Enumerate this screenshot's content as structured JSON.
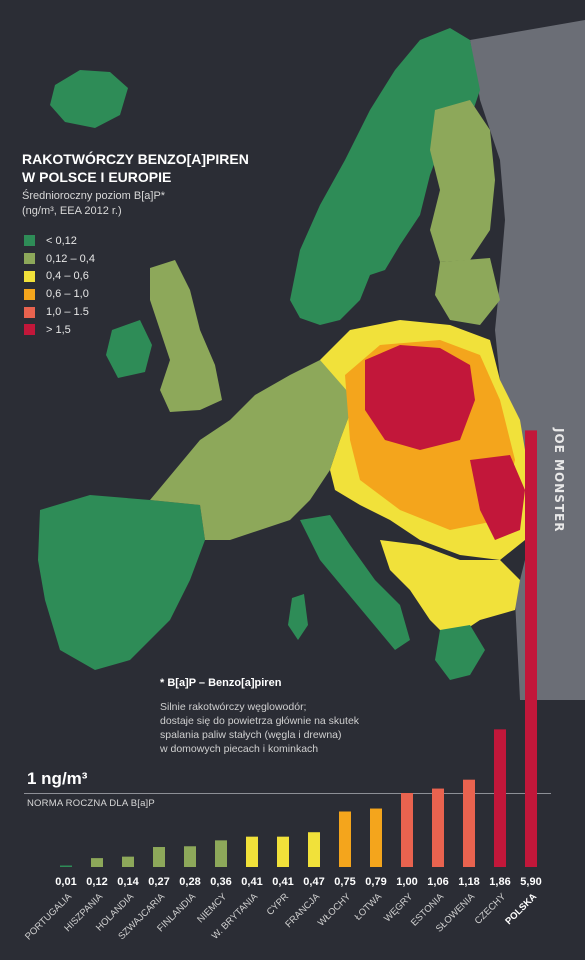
{
  "header": {
    "title_line1": "RAKOTWÓRCZY BENZO[A]PIREN",
    "title_line2": "W POLSCE I EUROPIE",
    "subtitle_line1": "Średnioroczny poziom B[a]P*",
    "subtitle_line2": "(ng/m³, EEA 2012 r.)"
  },
  "legend": [
    {
      "label": "< 0,12",
      "color": "#2e8c57"
    },
    {
      "label": "0,12 – 0,4",
      "color": "#8da85a"
    },
    {
      "label": "0,4 – 0,6",
      "color": "#f1e13a"
    },
    {
      "label": "0,6 – 1,0",
      "color": "#f4a51c"
    },
    {
      "label": "1,0 – 1.5",
      "color": "#e9634f"
    },
    {
      "label": "> 1,5",
      "color": "#c2173a"
    }
  ],
  "footnote": {
    "title": "* B[a]P – Benzo[a]piren",
    "line1": "Silnie rakotwórczy węglowodór;",
    "line2": "dostaje się do powietrza głównie na skutek",
    "line3": "spalania paliw stałych (węgla i drewna)",
    "line4": "w domowych piecach i kominkach"
  },
  "norm": {
    "value": "1 ng/m³",
    "label": "NORMA ROCZNA DLA B[a]P"
  },
  "watermark": "JOE MONSTER",
  "chart_data": {
    "type": "bar",
    "categories": [
      "PORTUGALIA",
      "HISZPANIA",
      "HOLANDIA",
      "SZWAJCARIA",
      "FINLANDIA",
      "NIEMCY",
      "W. BRYTANIA",
      "CYPR",
      "FRANCJA",
      "WŁOCHY",
      "ŁOTWA",
      "WĘGRY",
      "ESTONIA",
      "SŁOWENIA",
      "CZECHY",
      "POLSKA"
    ],
    "values": [
      0.01,
      0.12,
      0.14,
      0.27,
      0.28,
      0.36,
      0.41,
      0.41,
      0.47,
      0.75,
      0.79,
      1.0,
      1.06,
      1.18,
      1.86,
      5.9
    ],
    "value_labels": [
      "0,01",
      "0,12",
      "0,14",
      "0,27",
      "0,28",
      "0,36",
      "0,41",
      "0,41",
      "0,47",
      "0,75",
      "0,79",
      "1,00",
      "1,06",
      "1,18",
      "1,86",
      "5,90"
    ],
    "highlight": "POLSKA",
    "norm_value": 1.0,
    "colors": {
      "<0.12": "#2e8c57",
      "0.12-0.4": "#8da85a",
      "0.4-0.6": "#f1e13a",
      "0.6-1.0": "#f4a51c",
      "1.0-1.5": "#e9634f",
      ">1.5": "#c2173a"
    }
  }
}
